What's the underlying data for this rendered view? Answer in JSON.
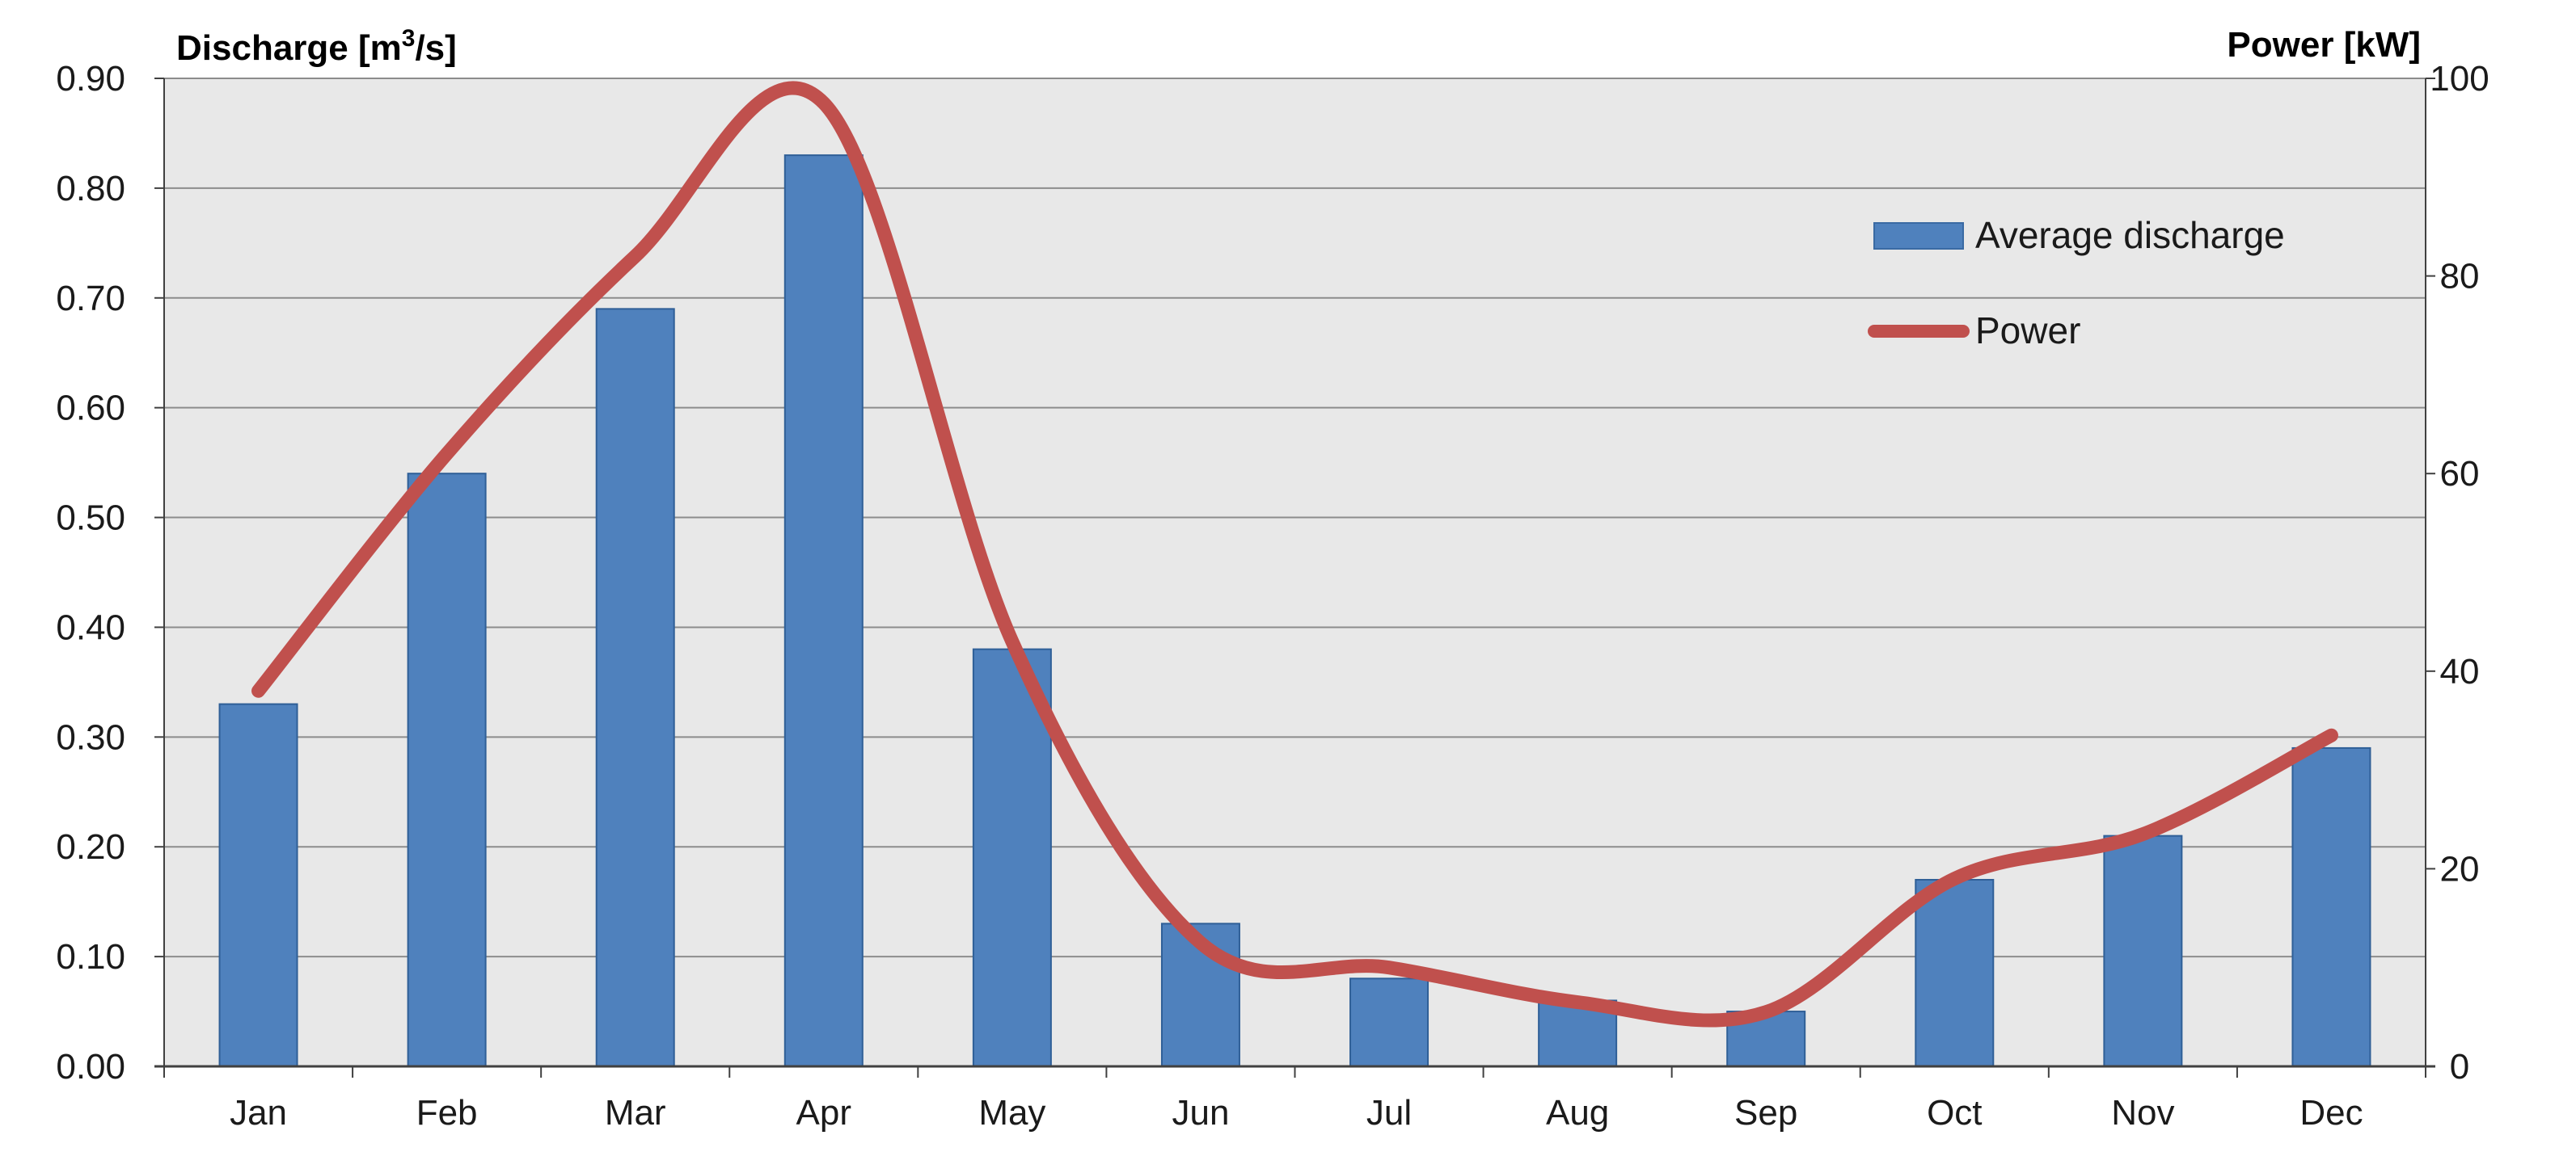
{
  "chart_data": {
    "type": "bar",
    "categories": [
      "Jan",
      "Feb",
      "Mar",
      "Apr",
      "May",
      "Jun",
      "Jul",
      "Aug",
      "Sep",
      "Oct",
      "Nov",
      "Dec"
    ],
    "series": [
      {
        "name": "Average discharge",
        "type": "bar",
        "axis": "left",
        "color": "#4f81bd",
        "values": [
          0.33,
          0.54,
          0.69,
          0.83,
          0.38,
          0.13,
          0.08,
          0.06,
          0.05,
          0.17,
          0.21,
          0.29
        ]
      },
      {
        "name": "Power",
        "type": "line",
        "axis": "right",
        "color": "#c0504d",
        "smooth": true,
        "values": [
          38,
          62,
          82,
          97.5,
          43,
          12.5,
          10,
          6.5,
          5.5,
          19,
          23.5,
          33.5
        ]
      }
    ],
    "ylabel_left_main": "Discharge [m",
    "ylabel_left_sup": "3",
    "ylabel_left_tail": "/s]",
    "ylabel_right": "Power [kW]",
    "ylim_left": [
      0,
      0.9
    ],
    "ylim_right": [
      0,
      100
    ],
    "yticks_left": [
      "0.00",
      "0.10",
      "0.20",
      "0.30",
      "0.40",
      "0.50",
      "0.60",
      "0.70",
      "0.80",
      "0.90"
    ],
    "yticks_right": [
      "0",
      "20",
      "40",
      "60",
      "80",
      "100"
    ],
    "grid": true,
    "legend_position": "top-right",
    "plot_background": "#e8e8e8"
  }
}
